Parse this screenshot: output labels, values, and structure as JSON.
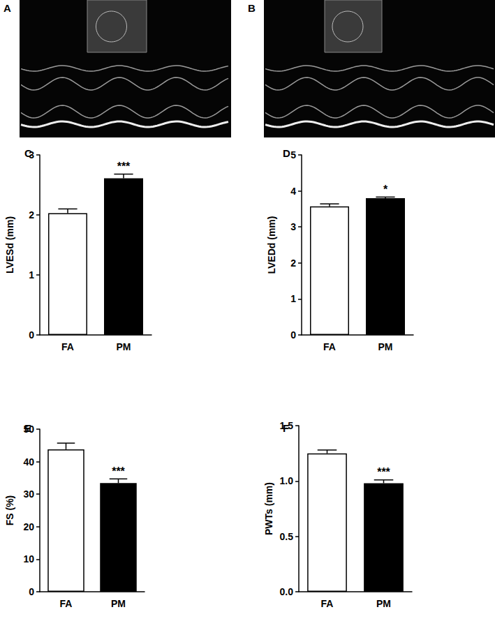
{
  "images": [
    {
      "panel": "A"
    },
    {
      "panel": "B"
    }
  ],
  "chart_data": [
    {
      "type": "bar",
      "panel": "C",
      "y_label": "LVESd (mm)",
      "categories": [
        "FA",
        "PM"
      ],
      "values": [
        2.03,
        2.61
      ],
      "errors": [
        0.07,
        0.07
      ],
      "colors": [
        "#ffffff",
        "#000000"
      ],
      "ylim": [
        0,
        3
      ],
      "yticks": [
        0,
        1,
        2,
        3
      ],
      "grid": false,
      "annotations": [
        {
          "category": "PM",
          "text": "***"
        }
      ]
    },
    {
      "type": "bar",
      "panel": "D",
      "y_label": "LVEDd (mm)",
      "categories": [
        "FA",
        "PM"
      ],
      "values": [
        3.57,
        3.8
      ],
      "errors": [
        0.07,
        0.03
      ],
      "colors": [
        "#ffffff",
        "#000000"
      ],
      "ylim": [
        0,
        5
      ],
      "yticks": [
        0,
        1,
        2,
        3,
        4,
        5
      ],
      "grid": false,
      "annotations": [
        {
          "category": "PM",
          "text": "*"
        }
      ]
    },
    {
      "type": "bar",
      "panel": "E",
      "y_label": "FS (%)",
      "categories": [
        "FA",
        "PM"
      ],
      "values": [
        43.8,
        33.4
      ],
      "errors": [
        1.9,
        1.3
      ],
      "colors": [
        "#ffffff",
        "#000000"
      ],
      "ylim": [
        0,
        50
      ],
      "yticks": [
        0,
        10,
        20,
        30,
        40,
        50
      ],
      "grid": false,
      "annotations": [
        {
          "category": "PM",
          "text": "***"
        }
      ]
    },
    {
      "type": "bar",
      "panel": "F",
      "y_label": "PWTs (mm)",
      "categories": [
        "FA",
        "PM"
      ],
      "values": [
        1.25,
        0.98
      ],
      "errors": [
        0.03,
        0.03
      ],
      "colors": [
        "#ffffff",
        "#000000"
      ],
      "ylim": [
        0,
        1.5
      ],
      "yticks": [
        {
          "value": 0,
          "label": "0.0"
        },
        {
          "value": 0.5,
          "label": "0.5"
        },
        {
          "value": 1,
          "label": "1.0"
        },
        {
          "value": 1.5,
          "label": "1.5"
        }
      ],
      "grid": false,
      "annotations": [
        {
          "category": "PM",
          "text": "***"
        }
      ]
    }
  ]
}
